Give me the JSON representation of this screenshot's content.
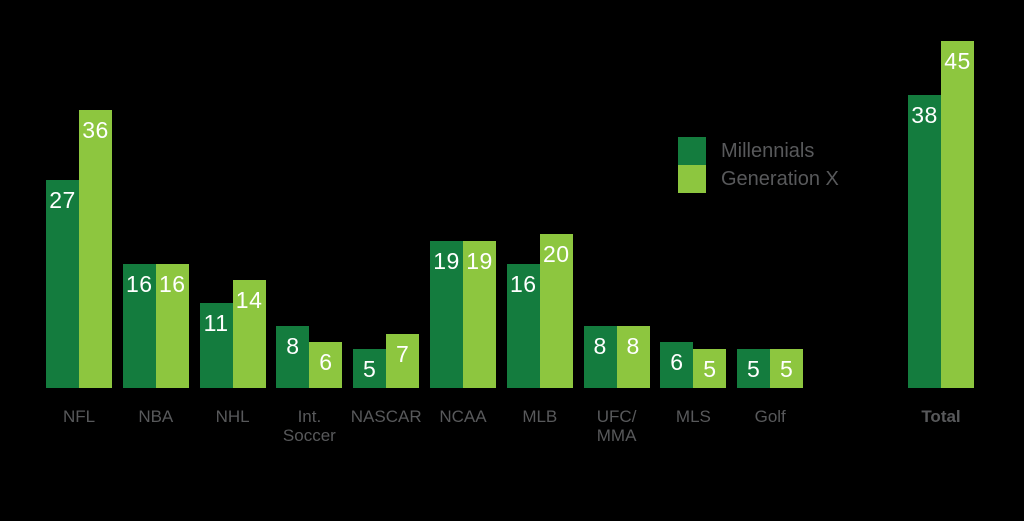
{
  "chart_data": {
    "type": "bar",
    "title": "",
    "xlabel": "",
    "ylabel": "",
    "grid": false,
    "value_labels_shown": true,
    "legend_position": "upper-right-of-plot",
    "categories": [
      {
        "label": "NFL",
        "lines": [
          "NFL"
        ],
        "bold": false
      },
      {
        "label": "NBA",
        "lines": [
          "NBA"
        ],
        "bold": false
      },
      {
        "label": "NHL",
        "lines": [
          "NHL"
        ],
        "bold": false
      },
      {
        "label": "Int. Soccer",
        "lines": [
          "Int.",
          "Soccer"
        ],
        "bold": false
      },
      {
        "label": "NASCAR",
        "lines": [
          "NASCAR"
        ],
        "bold": false
      },
      {
        "label": "NCAA",
        "lines": [
          "NCAA"
        ],
        "bold": false
      },
      {
        "label": "MLB",
        "lines": [
          "MLB"
        ],
        "bold": false
      },
      {
        "label": "UFC/MMA",
        "lines": [
          "UFC/",
          "MMA"
        ],
        "bold": false
      },
      {
        "label": "MLS",
        "lines": [
          "MLS"
        ],
        "bold": false
      },
      {
        "label": "Golf",
        "lines": [
          "Golf"
        ],
        "bold": false
      },
      {
        "label": "Total",
        "lines": [
          "Total"
        ],
        "bold": true
      }
    ],
    "series": [
      {
        "name": "Millennials",
        "color": "#147c3e",
        "values": [
          27,
          16,
          11,
          8,
          5,
          19,
          16,
          8,
          6,
          5,
          38
        ]
      },
      {
        "name": "Generation X",
        "color": "#8dc63f",
        "values": [
          36,
          16,
          14,
          6,
          7,
          19,
          20,
          8,
          5,
          5,
          45
        ]
      }
    ],
    "colors": {
      "background": "#000000",
      "value_label_text": "#ffffff",
      "category_label_text": "#58595b",
      "legend_text": "#58595b"
    }
  },
  "legend": {
    "millennials_label": "Millennials",
    "generation_x_label": "Generation X"
  }
}
